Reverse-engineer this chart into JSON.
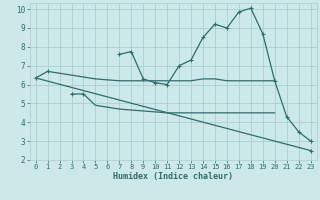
{
  "xlabel": "Humidex (Indice chaleur)",
  "background_color": "#cce8e8",
  "grid_color": "#aacece",
  "line_color": "#2d6e6e",
  "xlim": [
    -0.5,
    23.5
  ],
  "ylim": [
    2,
    10.3
  ],
  "xticks": [
    0,
    1,
    2,
    3,
    4,
    5,
    6,
    7,
    8,
    9,
    10,
    11,
    12,
    13,
    14,
    15,
    16,
    17,
    18,
    19,
    20,
    21,
    22,
    23
  ],
  "yticks": [
    2,
    3,
    4,
    5,
    6,
    7,
    8,
    9,
    10
  ],
  "line1_x": [
    0,
    1,
    2,
    3,
    4,
    5,
    6,
    7,
    8,
    9,
    10,
    11,
    12,
    13,
    14,
    15,
    16,
    17,
    18,
    19,
    20
  ],
  "line1_y": [
    6.35,
    6.7,
    6.6,
    6.5,
    6.4,
    6.3,
    6.25,
    6.2,
    6.2,
    6.2,
    6.2,
    6.2,
    6.2,
    6.2,
    6.3,
    6.3,
    6.2,
    6.2,
    6.2,
    6.2,
    6.2
  ],
  "line2_x": [
    3,
    4,
    5,
    6,
    7,
    8,
    9,
    10,
    11,
    12,
    13,
    14,
    15,
    16,
    17,
    18,
    19,
    20
  ],
  "line2_y": [
    5.5,
    5.5,
    4.9,
    4.8,
    4.7,
    4.65,
    4.6,
    4.55,
    4.5,
    4.5,
    4.5,
    4.5,
    4.5,
    4.5,
    4.5,
    4.5,
    4.5,
    4.5
  ],
  "line3_x": [
    0,
    23
  ],
  "line3_y": [
    6.35,
    2.5
  ],
  "line4_x": [
    7,
    8,
    9,
    10,
    11,
    12,
    13,
    14,
    15,
    16,
    17,
    18,
    19,
    20,
    21,
    22,
    23
  ],
  "line4_y": [
    7.6,
    7.75,
    6.3,
    6.1,
    6.0,
    7.0,
    7.3,
    8.5,
    9.2,
    9.0,
    9.85,
    10.05,
    8.7,
    6.2,
    4.3,
    3.5,
    3.0
  ],
  "line4_markers": [
    7,
    8,
    10,
    11,
    12,
    13,
    14,
    15,
    16,
    17,
    18,
    19,
    20,
    21,
    22,
    23
  ],
  "extra_marker_x": [
    23
  ],
  "extra_marker_y": [
    2.5
  ]
}
